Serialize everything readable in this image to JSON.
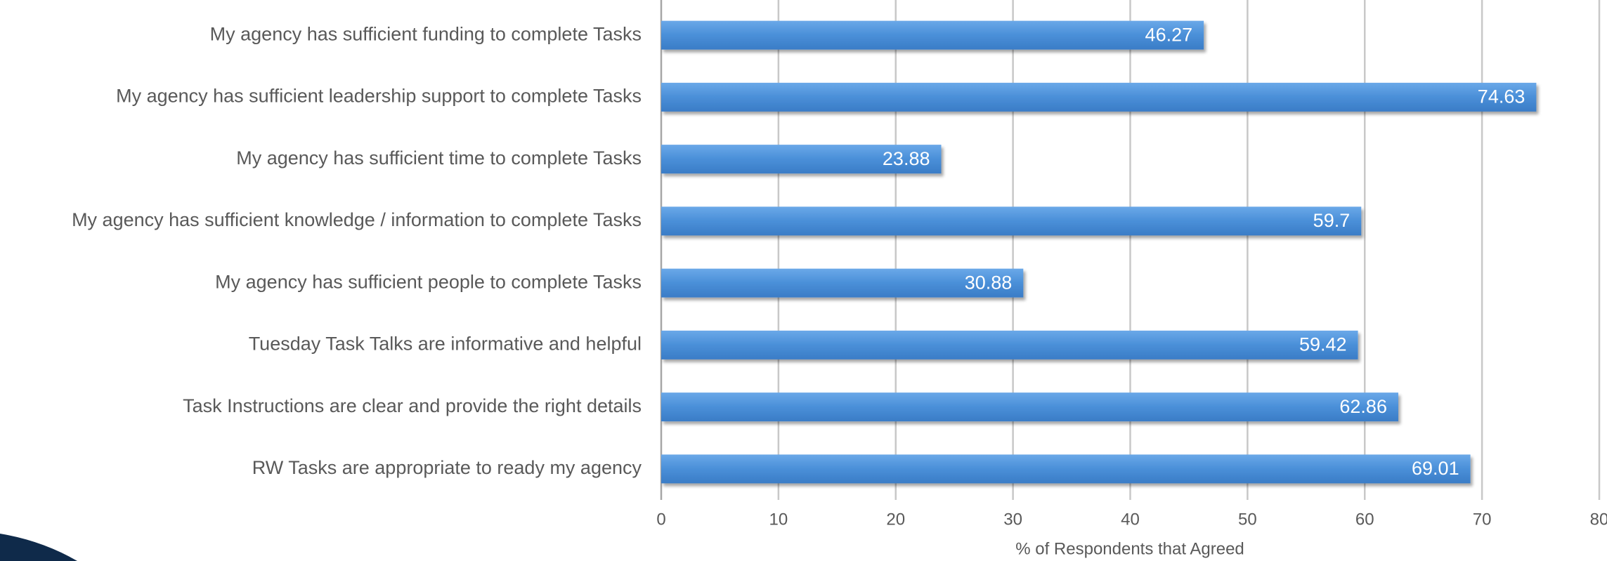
{
  "chart_data": {
    "type": "bar",
    "orientation": "horizontal",
    "categories": [
      "My agency has sufficient funding to complete Tasks",
      "My agency has sufficient leadership support to complete Tasks",
      "My agency has sufficient time to complete Tasks",
      "My agency has sufficient knowledge / information to complete Tasks",
      "My agency has sufficient people to complete Tasks",
      "Tuesday Task Talks are informative and helpful",
      "Task Instructions are clear and provide the right details",
      "RW Tasks are appropriate to ready my agency"
    ],
    "values": [
      46.27,
      74.63,
      23.88,
      59.7,
      30.88,
      59.42,
      62.86,
      69.01
    ],
    "color": "#4a8fd8",
    "xlabel": "% of Respondents that Agreed",
    "xlim": [
      0,
      80
    ],
    "xticks": [
      0,
      10,
      20,
      30,
      40,
      50,
      60,
      70,
      80
    ],
    "grid": true
  }
}
